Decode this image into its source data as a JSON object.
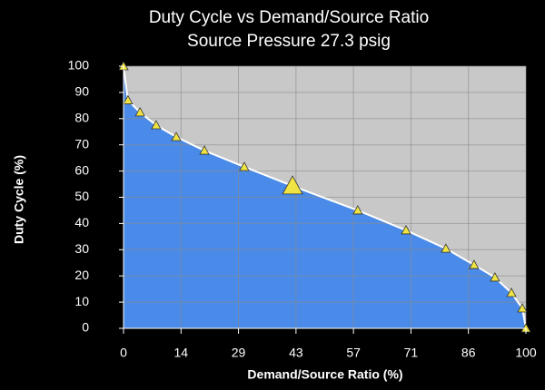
{
  "chart_data": {
    "type": "area",
    "title": "Duty Cycle vs Demand/Source Ratio",
    "subtitle": "Source Pressure 27.3 psig",
    "xlabel": "Demand/Source Ratio (%)",
    "ylabel": "Duty Cycle (%)",
    "x": [
      0,
      1.1,
      4.1,
      8.1,
      13.1,
      20.1,
      30,
      42,
      58.2,
      70.2,
      80.1,
      87.1,
      92.3,
      96.4,
      99.1,
      100
    ],
    "values": [
      100,
      87,
      82.4,
      77.5,
      73,
      67.8,
      61.6,
      54.3,
      45,
      37.4,
      30.4,
      24.2,
      19.4,
      13.5,
      7.6,
      0
    ],
    "color": "#4a8ae8",
    "line_color": "#ffffff",
    "marker_color": "#f0e442",
    "background_color": "#c8c8c8",
    "highlight_index": 7,
    "xlim": [
      0,
      100
    ],
    "ylim": [
      0,
      100
    ],
    "xticks": [
      0,
      {
        "value": 14.29,
        "label": "14"
      },
      {
        "value": 28.57,
        "label": "29"
      },
      {
        "value": 42.86,
        "label": "43"
      },
      {
        "value": 57.14,
        "label": "57"
      },
      {
        "value": 71.43,
        "label": "71"
      },
      {
        "value": 85.71,
        "label": "86"
      },
      100
    ],
    "yticks": [
      0,
      10,
      20,
      30,
      40,
      50,
      60,
      70,
      80,
      90,
      100
    ],
    "grid": true
  }
}
